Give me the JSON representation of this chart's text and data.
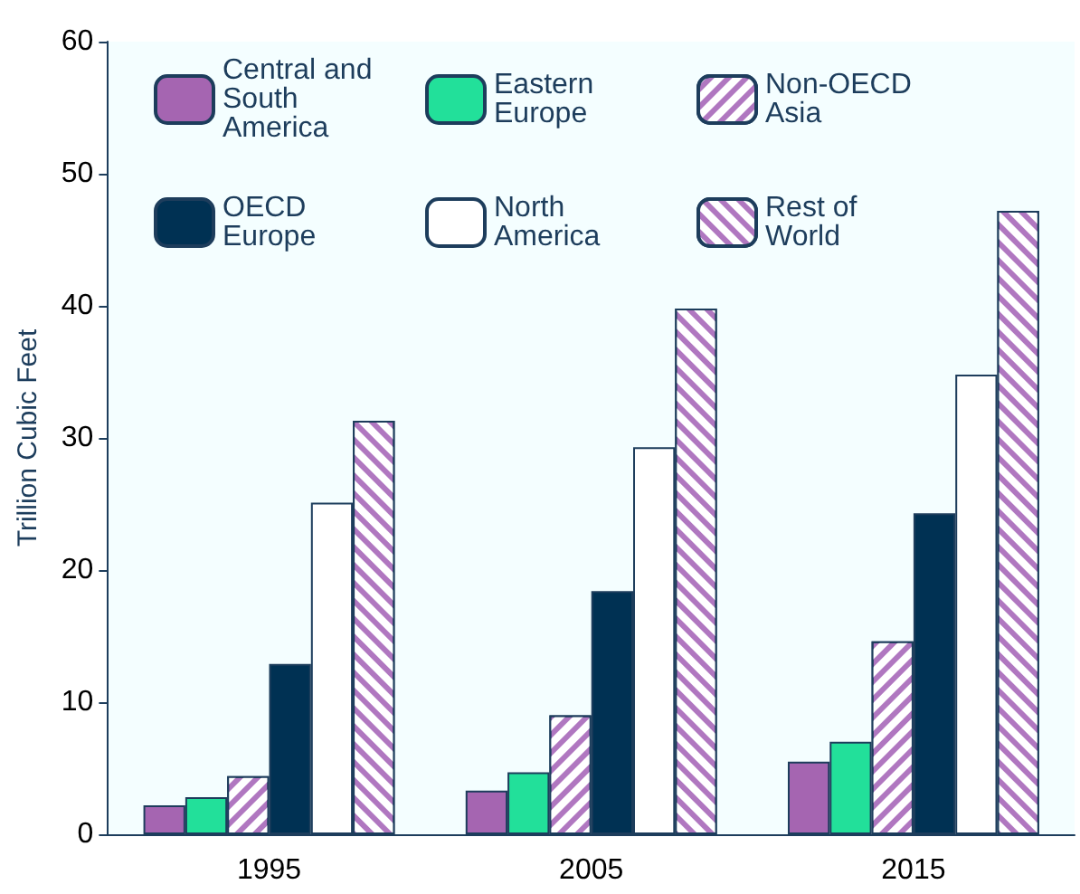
{
  "chart_data": {
    "type": "bar",
    "ylabel": "Trillion Cubic Feet",
    "categories": [
      "1995",
      "2005",
      "2015"
    ],
    "series": [
      {
        "name": "Central and South America",
        "color": "#a565b1",
        "values": [
          2.2,
          3.3,
          5.5
        ]
      },
      {
        "name": "Eastern Europe",
        "color": "#22e09a",
        "values": [
          2.8,
          4.7,
          7.0
        ]
      },
      {
        "name": "Non-OECD Asia",
        "color": "#b077c0",
        "values": [
          4.4,
          9.0,
          14.6
        ]
      },
      {
        "name": "OECD Europe",
        "color": "#003153",
        "values": [
          12.9,
          18.4,
          24.3
        ]
      },
      {
        "name": "North America",
        "color": "#ffffff",
        "values": [
          25.1,
          29.3,
          34.8
        ]
      },
      {
        "name": "Rest of World",
        "color": "#b077c0",
        "values": [
          31.3,
          39.8,
          47.2
        ]
      }
    ],
    "ylim": [
      0,
      60
    ],
    "yticks": [
      0,
      10,
      20,
      30,
      40,
      50,
      60
    ],
    "grid": false,
    "legend": "top"
  }
}
